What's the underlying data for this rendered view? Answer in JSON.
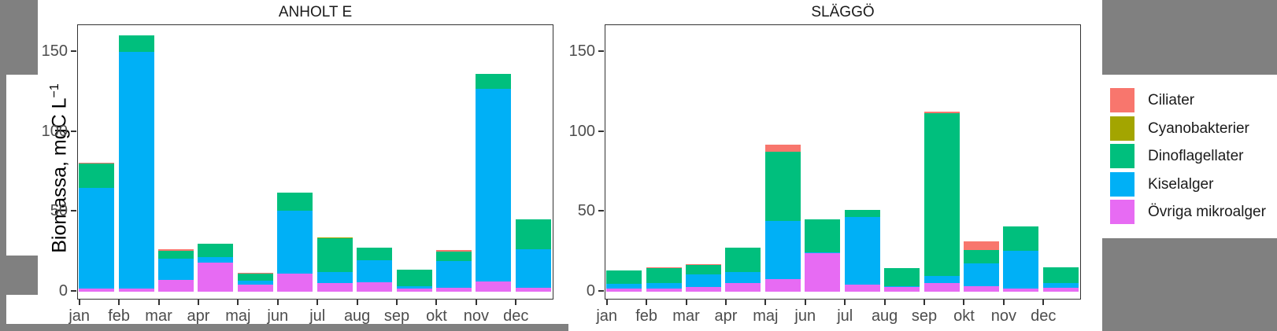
{
  "figure": {
    "ylabel_main": "Biomassa, mgC L",
    "ylabel_sup": "−1",
    "background": "#ffffff",
    "mask_color": "#808080",
    "axis_text_color": "#4d4d4d",
    "panel_border_color": "#333333"
  },
  "legend": {
    "position": "right",
    "items": [
      {
        "label": "Ciliater",
        "color": "#F8766D"
      },
      {
        "label": "Cyanobakterier",
        "color": "#A3A500"
      },
      {
        "label": "Dinoflagellater",
        "color": "#00BF7D"
      },
      {
        "label": "Kiselalger",
        "color": "#00B0F6"
      },
      {
        "label": "Övriga mikroalger",
        "color": "#E76BF3"
      }
    ]
  },
  "chart_data": [
    {
      "type": "bar",
      "stacked": true,
      "stack_order_bottom_to_top": [
        "Övriga mikroalger",
        "Kiselalger",
        "Dinoflagellater",
        "Cyanobakterier",
        "Ciliater"
      ],
      "title": "ANHOLT E",
      "xlabel": "",
      "ylabel": "Biomassa, mgC L⁻¹",
      "ylim": [
        0,
        167
      ],
      "yticks": [
        0,
        50,
        100,
        150
      ],
      "grid": false,
      "categories": [
        "jan",
        "feb",
        "mar",
        "apr",
        "maj",
        "jun",
        "jul",
        "aug",
        "sep",
        "okt",
        "nov",
        "dec"
      ],
      "series": [
        {
          "name": "Övriga mikroalger",
          "values": [
            1.5,
            1.5,
            7.0,
            18.0,
            4.0,
            11.0,
            5.0,
            5.5,
            1.5,
            2.0,
            6.0,
            2.0
          ]
        },
        {
          "name": "Kiselalger",
          "values": [
            63.0,
            148.5,
            13.5,
            3.5,
            2.5,
            39.5,
            7.0,
            14.0,
            1.5,
            17.0,
            120.5,
            24.5
          ]
        },
        {
          "name": "Dinoflagellater",
          "values": [
            15.5,
            10.0,
            5.0,
            8.5,
            4.5,
            11.0,
            21.0,
            8.0,
            10.5,
            6.0,
            9.5,
            18.5
          ]
        },
        {
          "name": "Cyanobakterier",
          "values": [
            0,
            0,
            0,
            0,
            0,
            0,
            0.8,
            0,
            0,
            0,
            0,
            0
          ]
        },
        {
          "name": "Ciliater",
          "values": [
            0.5,
            0,
            0.7,
            0,
            0.5,
            0,
            0,
            0,
            0,
            0.6,
            0,
            0
          ]
        }
      ]
    },
    {
      "type": "bar",
      "stacked": true,
      "stack_order_bottom_to_top": [
        "Övriga mikroalger",
        "Kiselalger",
        "Dinoflagellater",
        "Cyanobakterier",
        "Ciliater"
      ],
      "title": "SLÄGGÖ",
      "xlabel": "",
      "ylabel": "Biomassa, mgC L⁻¹",
      "ylim": [
        0,
        167
      ],
      "yticks": [
        0,
        50,
        100,
        150
      ],
      "grid": false,
      "categories": [
        "jan",
        "feb",
        "mar",
        "apr",
        "maj",
        "jun",
        "jul",
        "aug",
        "sep",
        "okt",
        "nov",
        "dec"
      ],
      "series": [
        {
          "name": "Övriga mikroalger",
          "values": [
            1.6,
            1.6,
            2.5,
            5.0,
            7.5,
            24.0,
            4.0,
            2.5,
            5.0,
            3.0,
            1.5,
            2.0
          ]
        },
        {
          "name": "Kiselalger",
          "values": [
            3.0,
            3.7,
            8.2,
            7.0,
            36.5,
            0.5,
            42.5,
            0.5,
            4.5,
            14.3,
            24.0,
            3.3
          ]
        },
        {
          "name": "Dinoflagellater",
          "values": [
            8.6,
            9.2,
            5.6,
            15.2,
            43.5,
            20.5,
            4.5,
            11.5,
            102.0,
            8.3,
            15.0,
            9.6
          ]
        },
        {
          "name": "Cyanobakterier",
          "values": [
            0,
            0,
            0,
            0,
            0,
            0,
            0,
            0,
            0,
            0,
            0,
            0
          ]
        },
        {
          "name": "Ciliater",
          "values": [
            0,
            0.5,
            0.5,
            0,
            4.0,
            0,
            0,
            0,
            1.0,
            5.7,
            0,
            0
          ]
        }
      ]
    }
  ]
}
